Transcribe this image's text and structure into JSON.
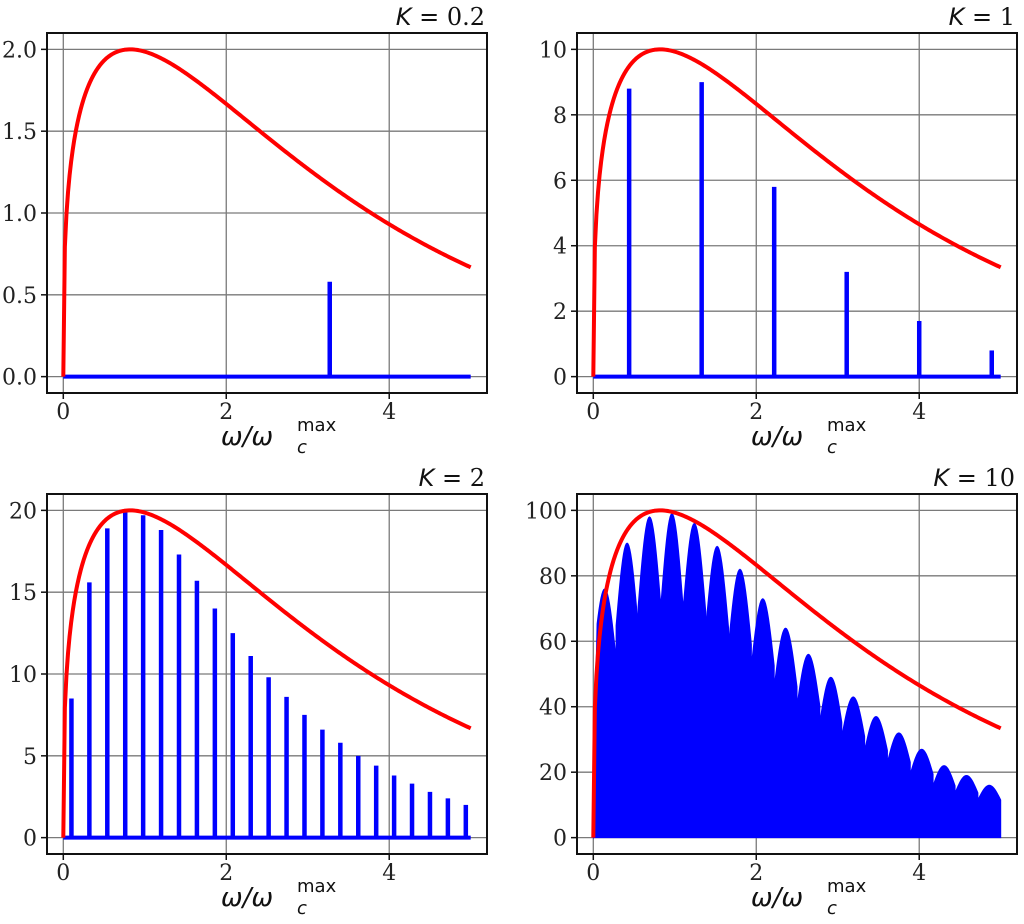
{
  "chart_data": [
    {
      "type": "line",
      "title": "K = 0.2",
      "title_k": "K",
      "title_value": "0.2",
      "xlabel": "ω/ω_c^max",
      "xlabel_main": "ω/ω",
      "xlabel_sub": "c",
      "xlabel_sup": "max",
      "xlim": [
        -0.2,
        5.2
      ],
      "ylim": [
        -0.1,
        2.1
      ],
      "xticks": [
        0,
        2,
        4
      ],
      "yticks": [
        0.0,
        0.5,
        1.0,
        1.5,
        2.0
      ],
      "ytick_labels": [
        "0.0",
        "0.5",
        "1.0",
        "1.5",
        "2.0"
      ],
      "grid": true,
      "series": [
        {
          "color": "#ff0000",
          "kind": "envelope",
          "peak_x": 0.82,
          "peak_y": 2.0,
          "x_range": [
            0,
            5
          ]
        },
        {
          "color": "#0000ff",
          "kind": "spikes",
          "baseline": 0.0,
          "x_range": [
            0,
            5
          ],
          "spikes": [
            {
              "x": 3.27,
              "y": 0.58
            }
          ]
        }
      ]
    },
    {
      "type": "line",
      "title": "K = 1",
      "title_k": "K",
      "title_value": "1",
      "xlabel": "ω/ω_c^max",
      "xlabel_main": "ω/ω",
      "xlabel_sub": "c",
      "xlabel_sup": "max",
      "xlim": [
        -0.2,
        5.2
      ],
      "ylim": [
        -0.5,
        10.5
      ],
      "xticks": [
        0,
        2,
        4
      ],
      "yticks": [
        0,
        2,
        4,
        6,
        8,
        10
      ],
      "ytick_labels": [
        "0",
        "2",
        "4",
        "6",
        "8",
        "10"
      ],
      "grid": true,
      "series": [
        {
          "color": "#ff0000",
          "kind": "envelope",
          "peak_x": 0.82,
          "peak_y": 10.0,
          "x_range": [
            0,
            5
          ]
        },
        {
          "color": "#0000ff",
          "kind": "spikes",
          "baseline": 0.0,
          "x_range": [
            0,
            5
          ],
          "spikes": [
            {
              "x": 0.44,
              "y": 8.8
            },
            {
              "x": 1.33,
              "y": 9.0
            },
            {
              "x": 2.22,
              "y": 5.8
            },
            {
              "x": 3.11,
              "y": 3.2
            },
            {
              "x": 4.0,
              "y": 1.7
            },
            {
              "x": 4.89,
              "y": 0.8
            }
          ]
        }
      ]
    },
    {
      "type": "line",
      "title": "K = 2",
      "title_k": "K",
      "title_value": "2",
      "xlabel": "ω/ω_c^max",
      "xlabel_main": "ω/ω",
      "xlabel_sub": "c",
      "xlabel_sup": "max",
      "xlim": [
        -0.2,
        5.2
      ],
      "ylim": [
        -1,
        21
      ],
      "xticks": [
        0,
        2,
        4
      ],
      "yticks": [
        0,
        5,
        10,
        15,
        20
      ],
      "ytick_labels": [
        "0",
        "5",
        "10",
        "15",
        "20"
      ],
      "grid": true,
      "series": [
        {
          "color": "#ff0000",
          "kind": "envelope",
          "peak_x": 0.82,
          "peak_y": 20.0,
          "x_range": [
            0,
            5
          ]
        },
        {
          "color": "#0000ff",
          "kind": "spikes",
          "baseline": 0.0,
          "x_range": [
            0,
            5
          ],
          "spikes": [
            {
              "x": 0.1,
              "y": 8.5
            },
            {
              "x": 0.32,
              "y": 15.6
            },
            {
              "x": 0.54,
              "y": 18.9
            },
            {
              "x": 0.76,
              "y": 19.9
            },
            {
              "x": 0.98,
              "y": 19.7
            },
            {
              "x": 1.2,
              "y": 18.8
            },
            {
              "x": 1.42,
              "y": 17.3
            },
            {
              "x": 1.64,
              "y": 15.7
            },
            {
              "x": 1.86,
              "y": 14.0
            },
            {
              "x": 2.08,
              "y": 12.5
            },
            {
              "x": 2.3,
              "y": 11.1
            },
            {
              "x": 2.52,
              "y": 9.8
            },
            {
              "x": 2.74,
              "y": 8.6
            },
            {
              "x": 2.96,
              "y": 7.5
            },
            {
              "x": 3.18,
              "y": 6.6
            },
            {
              "x": 3.4,
              "y": 5.8
            },
            {
              "x": 3.62,
              "y": 5.0
            },
            {
              "x": 3.84,
              "y": 4.4
            },
            {
              "x": 4.06,
              "y": 3.8
            },
            {
              "x": 4.28,
              "y": 3.3
            },
            {
              "x": 4.5,
              "y": 2.8
            },
            {
              "x": 4.72,
              "y": 2.4
            },
            {
              "x": 4.94,
              "y": 2.0
            }
          ]
        }
      ]
    },
    {
      "type": "area",
      "title": "K = 10",
      "title_k": "K",
      "title_value": "10",
      "xlabel": "ω/ω_c^max",
      "xlabel_main": "ω/ω",
      "xlabel_sub": "c",
      "xlabel_sup": "max",
      "xlim": [
        -0.2,
        5.2
      ],
      "ylim": [
        -5,
        105
      ],
      "xticks": [
        0,
        2,
        4
      ],
      "yticks": [
        0,
        20,
        40,
        60,
        80,
        100
      ],
      "ytick_labels": [
        "0",
        "20",
        "40",
        "60",
        "80",
        "100"
      ],
      "grid": true,
      "series": [
        {
          "color": "#ff0000",
          "kind": "envelope",
          "peak_x": 0.82,
          "peak_y": 100.0,
          "x_range": [
            0,
            5
          ]
        },
        {
          "color": "#0000ff",
          "kind": "filled-scallops",
          "baseline": 0.0,
          "x_range": [
            0,
            5
          ],
          "lobes": [
            {
              "x0": 0.0,
              "x1": 0.28,
              "peak": 76
            },
            {
              "x0": 0.28,
              "x1": 0.55,
              "peak": 90
            },
            {
              "x0": 0.55,
              "x1": 0.83,
              "peak": 98
            },
            {
              "x0": 0.83,
              "x1": 1.1,
              "peak": 99
            },
            {
              "x0": 1.1,
              "x1": 1.38,
              "peak": 96
            },
            {
              "x0": 1.38,
              "x1": 1.66,
              "peak": 89
            },
            {
              "x0": 1.66,
              "x1": 1.94,
              "peak": 82
            },
            {
              "x0": 1.94,
              "x1": 2.22,
              "peak": 73
            },
            {
              "x0": 2.22,
              "x1": 2.5,
              "peak": 64
            },
            {
              "x0": 2.5,
              "x1": 2.78,
              "peak": 56
            },
            {
              "x0": 2.78,
              "x1": 3.05,
              "peak": 49
            },
            {
              "x0": 3.05,
              "x1": 3.33,
              "peak": 43
            },
            {
              "x0": 3.33,
              "x1": 3.61,
              "peak": 37
            },
            {
              "x0": 3.61,
              "x1": 3.89,
              "peak": 32
            },
            {
              "x0": 3.89,
              "x1": 4.17,
              "peak": 27
            },
            {
              "x0": 4.17,
              "x1": 4.44,
              "peak": 22
            },
            {
              "x0": 4.44,
              "x1": 4.72,
              "peak": 19
            },
            {
              "x0": 4.72,
              "x1": 5.0,
              "peak": 16
            }
          ]
        }
      ]
    }
  ]
}
